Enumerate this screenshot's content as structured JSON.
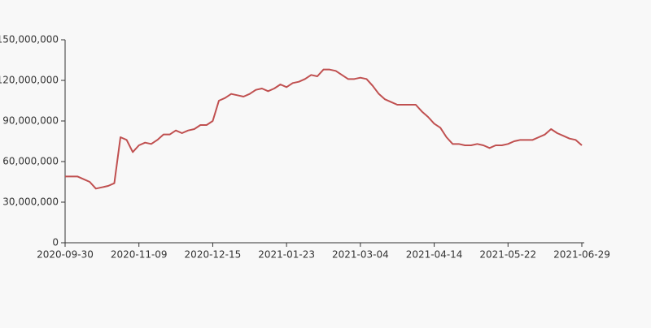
{
  "chart_data": {
    "type": "line",
    "categories": [
      "2020-09-30",
      null,
      null,
      null,
      null,
      null,
      null,
      null,
      null,
      null,
      null,
      null,
      "2020-11-09",
      null,
      null,
      null,
      null,
      null,
      null,
      null,
      null,
      null,
      null,
      null,
      "2020-12-15",
      null,
      null,
      null,
      null,
      null,
      null,
      null,
      null,
      null,
      null,
      null,
      "2021-01-23",
      null,
      null,
      null,
      null,
      null,
      null,
      null,
      null,
      null,
      null,
      null,
      "2021-03-04",
      null,
      null,
      null,
      null,
      null,
      null,
      null,
      null,
      null,
      null,
      null,
      "2021-04-14",
      null,
      null,
      null,
      null,
      null,
      null,
      null,
      null,
      null,
      null,
      null,
      "2021-05-22",
      null,
      null,
      null,
      null,
      null,
      null,
      null,
      null,
      null,
      null,
      null,
      "2021-06-29"
    ],
    "values": [
      49000000,
      49000000,
      49000000,
      47000000,
      45000000,
      40000000,
      41000000,
      42000000,
      44000000,
      78000000,
      76000000,
      67000000,
      72000000,
      74000000,
      73000000,
      76000000,
      80000000,
      80000000,
      83000000,
      81000000,
      83000000,
      84000000,
      87000000,
      87000000,
      90000000,
      105000000,
      107000000,
      110000000,
      109000000,
      108000000,
      110000000,
      113000000,
      114000000,
      112000000,
      114000000,
      117000000,
      115000000,
      118000000,
      119000000,
      121000000,
      124000000,
      123000000,
      128000000,
      128000000,
      127000000,
      124000000,
      121000000,
      121000000,
      122000000,
      121000000,
      116000000,
      110000000,
      106000000,
      104000000,
      102000000,
      102000000,
      102000000,
      102000000,
      97000000,
      93000000,
      88000000,
      85000000,
      78000000,
      73000000,
      73000000,
      72000000,
      72000000,
      73000000,
      72000000,
      70000000,
      72000000,
      72000000,
      73000000,
      75000000,
      76000000,
      76000000,
      76000000,
      78000000,
      80000000,
      84000000,
      81000000,
      79000000,
      77000000,
      76000000,
      72000000
    ],
    "color": "#c05050",
    "ylim": [
      0,
      150000000
    ],
    "yticks": [
      0,
      {
        "value": 30000000,
        "label": "30,000,000"
      },
      {
        "value": 60000000,
        "label": "60,000,000"
      },
      {
        "value": 90000000,
        "label": "90,000,000"
      },
      {
        "value": 120000000,
        "label": "120,000,000"
      },
      {
        "value": 150000000,
        "label": "150,000,000"
      }
    ],
    "grid": false
  }
}
